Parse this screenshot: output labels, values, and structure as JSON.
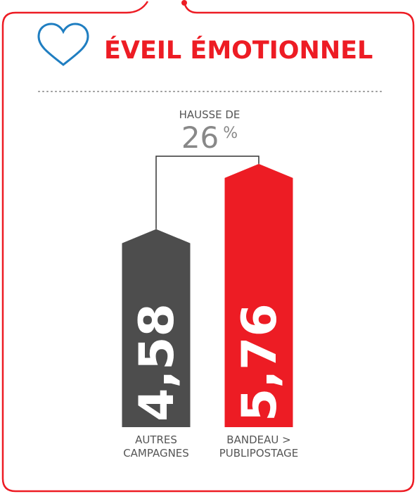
{
  "chart_data": {
    "type": "bar",
    "title": "ÉVEIL ÉMOTIONNEL",
    "categories": [
      "AUTRES CAMPAGNES",
      "BANDEAU > PUBLIPOSTAGE"
    ],
    "series": [
      {
        "name": null,
        "colors": [
          "#4d4d4d",
          "#ed1c24"
        ],
        "values": [
          4.58,
          5.76
        ],
        "value_labels": [
          "4,58",
          "5,76"
        ]
      }
    ],
    "ylim": [
      1,
      6
    ],
    "annotation": {
      "label": "HAUSSE DE",
      "value": 26,
      "unit": "%"
    }
  }
}
